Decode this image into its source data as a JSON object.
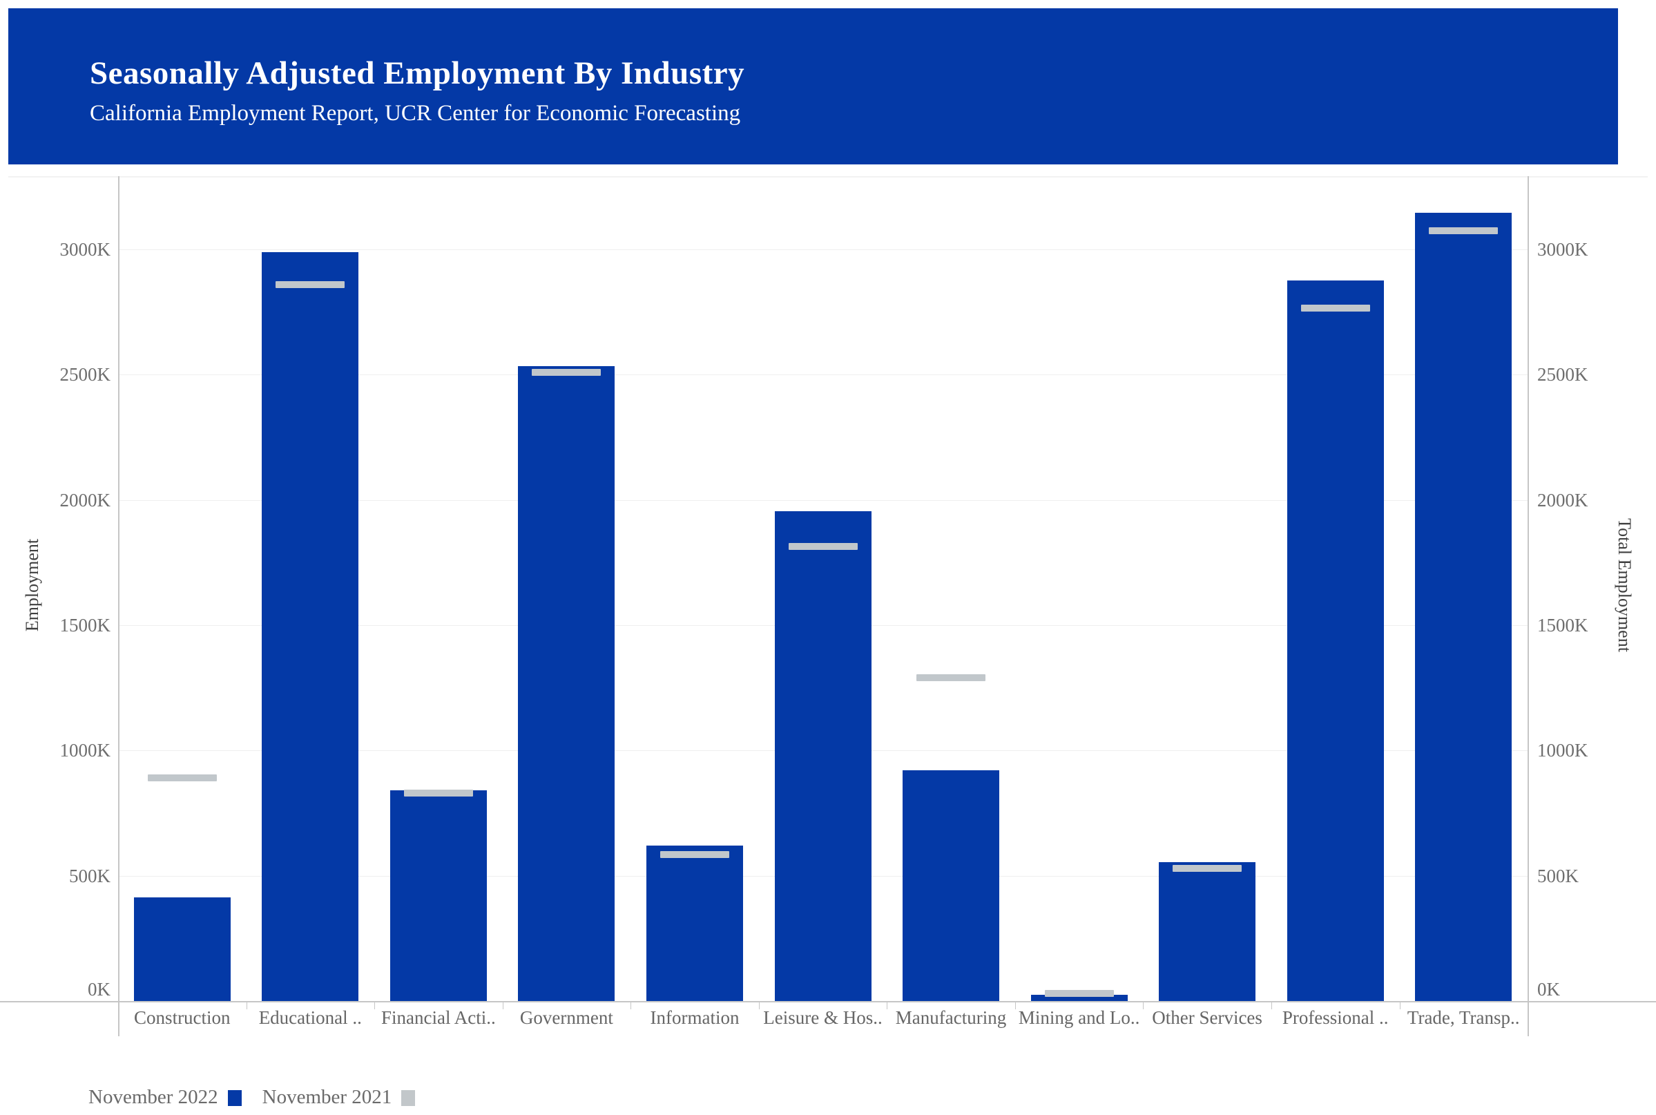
{
  "header": {
    "title": "Seasonally Adjusted Employment By Industry",
    "subtitle": "California Employment Report, UCR Center for Economic Forecasting",
    "bg_color": "#0439A6",
    "text_color": "#FFFFFF"
  },
  "chart_data": {
    "type": "bar",
    "title": "Seasonally Adjusted Employment By Industry",
    "subtitle": "California Employment Report, UCR Center for Economic Forecasting",
    "categories": [
      "Construction",
      "Educational ..",
      "Financial Acti..",
      "Government",
      "Information",
      "Leisure & Hos..",
      "Manufacturing",
      "Mining and Lo..",
      "Other Services",
      "Professional ..",
      "Trade, Transp.."
    ],
    "series": [
      {
        "name": "November 2022",
        "mark": "bar",
        "color": "#0439A6",
        "values_thousands": [
          415,
          2990,
          840,
          2535,
          620,
          1955,
          920,
          25,
          555,
          2875,
          3145
        ]
      },
      {
        "name": "November 2021",
        "mark": "tick",
        "color": "#C1C7CB",
        "values_thousands": [
          890,
          2860,
          830,
          2510,
          585,
          1815,
          1290,
          30,
          530,
          2765,
          3075
        ]
      }
    ],
    "value_unit": "K (thousands of jobs)",
    "ylabel_left": "Employment",
    "ylabel_right": "Total Employment",
    "y_ticks": [
      "0K",
      "500K",
      "1000K",
      "1500K",
      "2000K",
      "2500K",
      "3000K"
    ],
    "y_tick_values": [
      0,
      500,
      1000,
      1500,
      2000,
      2500,
      3000
    ],
    "ylim": [
      0,
      3292
    ],
    "grid": true,
    "legend_position": "bottom-left"
  },
  "legend": {
    "items": [
      {
        "label": "November 2022",
        "color": "#0439A6"
      },
      {
        "label": "November 2021",
        "color": "#C2C7CA"
      }
    ]
  },
  "colors": {
    "bar_blue": "#0439A6",
    "prior_year_gray": "#C1C7CB",
    "gridline": "#EFEFEF",
    "axis_line": "#C6C6C6",
    "tick_label_gray": "#6E6E6E",
    "category_label_gray": "#666666",
    "axis_title_gray": "#3F3F3F",
    "legend_text_gray": "#6A6A6A",
    "background": "#FFFFFF"
  }
}
